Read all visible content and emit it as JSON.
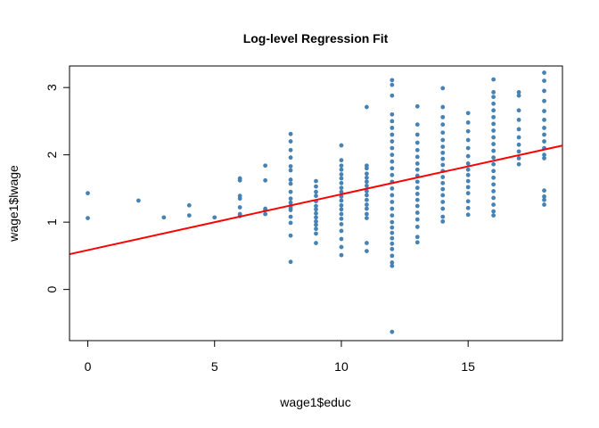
{
  "chart_data": {
    "type": "scatter",
    "title": "Log-level Regression Fit",
    "xlabel": "wage1$educ",
    "ylabel": "wage1$lwage",
    "xlim": [
      -0.72,
      18.72
    ],
    "ylim": [
      -0.76,
      3.32
    ],
    "x_ticks": [
      0,
      5,
      10,
      15
    ],
    "y_ticks": [
      0,
      1,
      2,
      3
    ],
    "grid": false,
    "point_color": "#4682B4",
    "line_color": "#FF0000",
    "regression_line": {
      "intercept": 0.584,
      "slope": 0.083
    },
    "points": [
      [
        0,
        1.43
      ],
      [
        0,
        1.06
      ],
      [
        2,
        1.32
      ],
      [
        3,
        1.07
      ],
      [
        4,
        1.25
      ],
      [
        4,
        1.1
      ],
      [
        5,
        1.07
      ],
      [
        6,
        1.65
      ],
      [
        6,
        1.62
      ],
      [
        6,
        1.39
      ],
      [
        6,
        1.35
      ],
      [
        6,
        1.22
      ],
      [
        6,
        1.12
      ],
      [
        6,
        1.09
      ],
      [
        7,
        1.84
      ],
      [
        7,
        1.62
      ],
      [
        7,
        1.2
      ],
      [
        7,
        1.18
      ],
      [
        7,
        1.12
      ],
      [
        8,
        2.31
      ],
      [
        8,
        2.2
      ],
      [
        8,
        2.07
      ],
      [
        8,
        1.96
      ],
      [
        8,
        1.83
      ],
      [
        8,
        1.77
      ],
      [
        8,
        1.63
      ],
      [
        8,
        1.57
      ],
      [
        8,
        1.45
      ],
      [
        8,
        1.35
      ],
      [
        8,
        1.29
      ],
      [
        8,
        1.24
      ],
      [
        8,
        1.21
      ],
      [
        8,
        1.18
      ],
      [
        8,
        1.08
      ],
      [
        8,
        0.99
      ],
      [
        8,
        0.8
      ],
      [
        8,
        0.41
      ],
      [
        9,
        1.61
      ],
      [
        9,
        1.53
      ],
      [
        9,
        1.45
      ],
      [
        9,
        1.39
      ],
      [
        9,
        1.31
      ],
      [
        9,
        1.24
      ],
      [
        9,
        1.19
      ],
      [
        9,
        1.13
      ],
      [
        9,
        1.07
      ],
      [
        9,
        1.01
      ],
      [
        9,
        0.96
      ],
      [
        9,
        0.9
      ],
      [
        9,
        0.83
      ],
      [
        9,
        0.69
      ],
      [
        10,
        2.14
      ],
      [
        10,
        1.92
      ],
      [
        10,
        1.84
      ],
      [
        10,
        1.78
      ],
      [
        10,
        1.71
      ],
      [
        10,
        1.65
      ],
      [
        10,
        1.58
      ],
      [
        10,
        1.51
      ],
      [
        10,
        1.45
      ],
      [
        10,
        1.38
      ],
      [
        10,
        1.32
      ],
      [
        10,
        1.25
      ],
      [
        10,
        1.19
      ],
      [
        10,
        1.12
      ],
      [
        10,
        1.05
      ],
      [
        10,
        0.97
      ],
      [
        10,
        0.87
      ],
      [
        10,
        0.75
      ],
      [
        10,
        0.63
      ],
      [
        10,
        0.51
      ],
      [
        11,
        2.71
      ],
      [
        11,
        1.84
      ],
      [
        11,
        1.8
      ],
      [
        11,
        1.72
      ],
      [
        11,
        1.66
      ],
      [
        11,
        1.6
      ],
      [
        11,
        1.54
      ],
      [
        11,
        1.46
      ],
      [
        11,
        1.4
      ],
      [
        11,
        1.33
      ],
      [
        11,
        1.26
      ],
      [
        11,
        1.2
      ],
      [
        11,
        1.12
      ],
      [
        11,
        1.06
      ],
      [
        11,
        0.69
      ],
      [
        11,
        0.57
      ],
      [
        12,
        3.11
      ],
      [
        12,
        3.04
      ],
      [
        12,
        2.88
      ],
      [
        12,
        2.6
      ],
      [
        12,
        2.5
      ],
      [
        12,
        2.4
      ],
      [
        12,
        2.3
      ],
      [
        12,
        2.2
      ],
      [
        12,
        2.1
      ],
      [
        12,
        2.0
      ],
      [
        12,
        1.9
      ],
      [
        12,
        1.8
      ],
      [
        12,
        1.7
      ],
      [
        12,
        1.6
      ],
      [
        12,
        1.5
      ],
      [
        12,
        1.4
      ],
      [
        12,
        1.3
      ],
      [
        12,
        1.2
      ],
      [
        12,
        1.1
      ],
      [
        12,
        1.0
      ],
      [
        12,
        0.92
      ],
      [
        12,
        0.84
      ],
      [
        12,
        0.76
      ],
      [
        12,
        0.68
      ],
      [
        12,
        0.6
      ],
      [
        12,
        0.5
      ],
      [
        12,
        0.4
      ],
      [
        12,
        0.35
      ],
      [
        12,
        -0.63
      ],
      [
        13,
        2.72
      ],
      [
        13,
        2.45
      ],
      [
        13,
        2.3
      ],
      [
        13,
        2.18
      ],
      [
        13,
        2.07
      ],
      [
        13,
        1.97
      ],
      [
        13,
        1.87
      ],
      [
        13,
        1.78
      ],
      [
        13,
        1.69
      ],
      [
        13,
        1.6
      ],
      [
        13,
        1.51
      ],
      [
        13,
        1.42
      ],
      [
        13,
        1.33
      ],
      [
        13,
        1.24
      ],
      [
        13,
        1.14
      ],
      [
        13,
        1.04
      ],
      [
        13,
        0.93
      ],
      [
        13,
        0.78
      ],
      [
        13,
        0.7
      ],
      [
        14,
        2.99
      ],
      [
        14,
        2.71
      ],
      [
        14,
        2.56
      ],
      [
        14,
        2.45
      ],
      [
        14,
        2.33
      ],
      [
        14,
        2.22
      ],
      [
        14,
        2.12
      ],
      [
        14,
        2.03
      ],
      [
        14,
        1.94
      ],
      [
        14,
        1.85
      ],
      [
        14,
        1.76
      ],
      [
        14,
        1.67
      ],
      [
        14,
        1.58
      ],
      [
        14,
        1.49
      ],
      [
        14,
        1.4
      ],
      [
        14,
        1.3
      ],
      [
        14,
        1.2
      ],
      [
        14,
        1.08
      ],
      [
        14,
        1.01
      ],
      [
        15,
        2.62
      ],
      [
        15,
        2.48
      ],
      [
        15,
        2.35
      ],
      [
        15,
        2.22
      ],
      [
        15,
        2.1
      ],
      [
        15,
        1.98
      ],
      [
        15,
        1.87
      ],
      [
        15,
        1.78
      ],
      [
        15,
        1.7
      ],
      [
        15,
        1.61
      ],
      [
        15,
        1.52
      ],
      [
        15,
        1.43
      ],
      [
        15,
        1.31
      ],
      [
        15,
        1.21
      ],
      [
        15,
        1.11
      ],
      [
        16,
        3.12
      ],
      [
        16,
        2.93
      ],
      [
        16,
        2.86
      ],
      [
        16,
        2.76
      ],
      [
        16,
        2.66
      ],
      [
        16,
        2.56
      ],
      [
        16,
        2.46
      ],
      [
        16,
        2.36
      ],
      [
        16,
        2.26
      ],
      [
        16,
        2.16
      ],
      [
        16,
        2.06
      ],
      [
        16,
        1.96
      ],
      [
        16,
        1.86
      ],
      [
        16,
        1.76
      ],
      [
        16,
        1.66
      ],
      [
        16,
        1.56
      ],
      [
        16,
        1.46
      ],
      [
        16,
        1.36
      ],
      [
        16,
        1.26
      ],
      [
        16,
        1.16
      ],
      [
        16,
        1.1
      ],
      [
        17,
        2.93
      ],
      [
        17,
        2.88
      ],
      [
        17,
        2.66
      ],
      [
        17,
        2.52
      ],
      [
        17,
        2.38
      ],
      [
        17,
        2.26
      ],
      [
        17,
        2.15
      ],
      [
        17,
        2.05
      ],
      [
        17,
        1.95
      ],
      [
        17,
        1.86
      ],
      [
        18,
        3.22
      ],
      [
        18,
        3.1
      ],
      [
        18,
        2.95
      ],
      [
        18,
        2.8
      ],
      [
        18,
        2.65
      ],
      [
        18,
        2.52
      ],
      [
        18,
        2.4
      ],
      [
        18,
        2.3
      ],
      [
        18,
        2.2
      ],
      [
        18,
        2.1
      ],
      [
        18,
        2.0
      ],
      [
        18,
        1.95
      ],
      [
        18,
        1.47
      ],
      [
        18,
        1.38
      ],
      [
        18,
        1.33
      ],
      [
        18,
        1.26
      ]
    ]
  }
}
